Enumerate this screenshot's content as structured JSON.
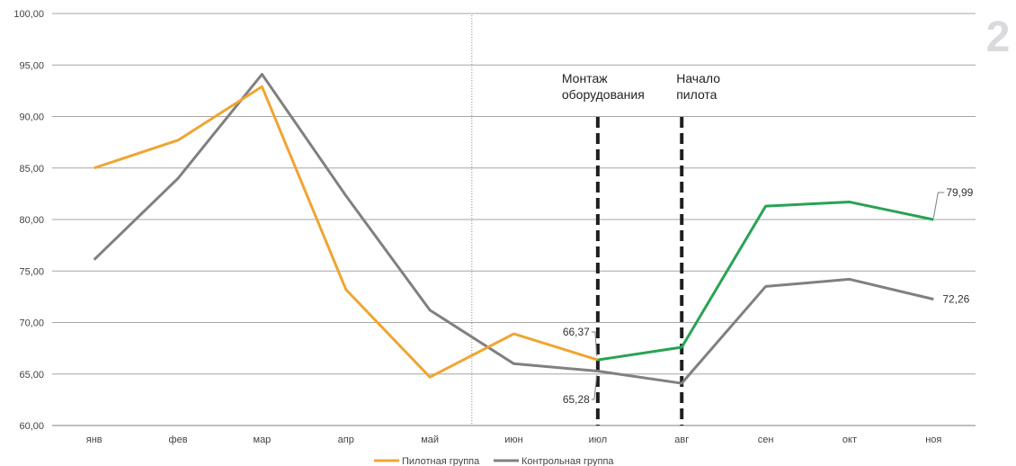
{
  "badge": "2",
  "chart_data": {
    "type": "line",
    "categories": [
      "янв",
      "фев",
      "мар",
      "апр",
      "май",
      "июн",
      "июл",
      "авг",
      "сен",
      "окт",
      "ноя"
    ],
    "ylim": [
      60,
      100
    ],
    "yticks": [
      "60,00",
      "65,00",
      "70,00",
      "75,00",
      "80,00",
      "85,00",
      "90,00",
      "95,00",
      "100,00"
    ],
    "grid": true,
    "legend_position": "bottom",
    "series": [
      {
        "name": "Пилотная группа",
        "color": "#f0a531",
        "pilot_color": "#27a353",
        "values": [
          85.0,
          87.7,
          92.9,
          73.2,
          64.7,
          68.9,
          66.37,
          67.6,
          81.3,
          81.7,
          79.99
        ]
      },
      {
        "name": "Контрольная группа",
        "color": "#808080",
        "values": [
          76.1,
          84.0,
          94.1,
          82.3,
          71.2,
          66.0,
          65.28,
          64.1,
          73.5,
          74.2,
          72.26
        ]
      }
    ],
    "annotations": [
      {
        "text": [
          "Монтаж",
          "оборудования"
        ],
        "category": "июл"
      },
      {
        "text": [
          "Начало",
          "пилота"
        ],
        "category": "авг"
      }
    ],
    "data_labels": [
      "66,37",
      "65,28",
      "79,99",
      "72,26"
    ]
  }
}
